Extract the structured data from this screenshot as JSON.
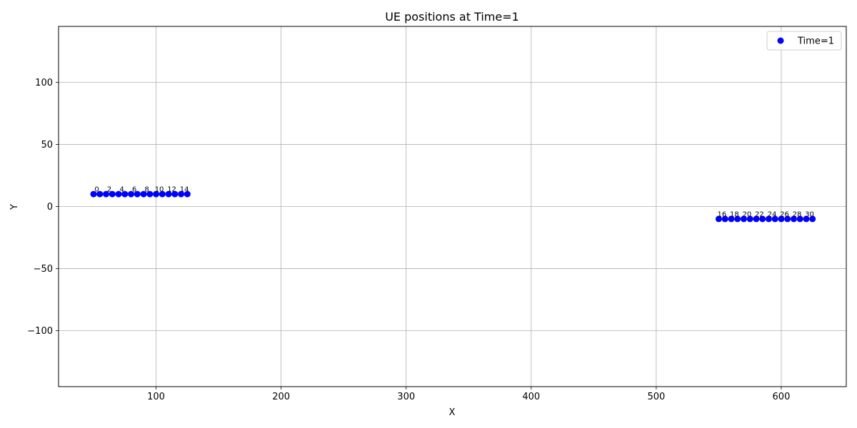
{
  "chart_data": {
    "type": "scatter",
    "title": "UE positions at Time=1",
    "xlabel": "X",
    "ylabel": "Y",
    "xlim": [
      22,
      652
    ],
    "ylim": [
      -145,
      145
    ],
    "xticks": [
      100,
      200,
      300,
      400,
      500,
      600
    ],
    "yticks": [
      -100,
      -50,
      0,
      50,
      100
    ],
    "ytick_labels": [
      "−100",
      "−50",
      "0",
      "50",
      "100"
    ],
    "grid": true,
    "legend_position": "top-right",
    "series": [
      {
        "name": "Time=1",
        "color": "#0000ff",
        "points": [
          {
            "x": 50,
            "y": 10,
            "label": "0"
          },
          {
            "x": 55,
            "y": 10,
            "label": ""
          },
          {
            "x": 60,
            "y": 10,
            "label": "2"
          },
          {
            "x": 65,
            "y": 10,
            "label": ""
          },
          {
            "x": 70,
            "y": 10,
            "label": "4"
          },
          {
            "x": 75,
            "y": 10,
            "label": ""
          },
          {
            "x": 80,
            "y": 10,
            "label": "6"
          },
          {
            "x": 85,
            "y": 10,
            "label": ""
          },
          {
            "x": 90,
            "y": 10,
            "label": "8"
          },
          {
            "x": 95,
            "y": 10,
            "label": ""
          },
          {
            "x": 100,
            "y": 10,
            "label": "10"
          },
          {
            "x": 105,
            "y": 10,
            "label": ""
          },
          {
            "x": 110,
            "y": 10,
            "label": "12"
          },
          {
            "x": 115,
            "y": 10,
            "label": ""
          },
          {
            "x": 120,
            "y": 10,
            "label": "14"
          },
          {
            "x": 125,
            "y": 10,
            "label": ""
          },
          {
            "x": 550,
            "y": -10,
            "label": "16"
          },
          {
            "x": 555,
            "y": -10,
            "label": ""
          },
          {
            "x": 560,
            "y": -10,
            "label": "18"
          },
          {
            "x": 565,
            "y": -10,
            "label": ""
          },
          {
            "x": 570,
            "y": -10,
            "label": "20"
          },
          {
            "x": 575,
            "y": -10,
            "label": ""
          },
          {
            "x": 580,
            "y": -10,
            "label": "22"
          },
          {
            "x": 585,
            "y": -10,
            "label": ""
          },
          {
            "x": 590,
            "y": -10,
            "label": "24"
          },
          {
            "x": 595,
            "y": -10,
            "label": ""
          },
          {
            "x": 600,
            "y": -10,
            "label": "26"
          },
          {
            "x": 605,
            "y": -10,
            "label": ""
          },
          {
            "x": 610,
            "y": -10,
            "label": "28"
          },
          {
            "x": 615,
            "y": -10,
            "label": ""
          },
          {
            "x": 620,
            "y": -10,
            "label": "30"
          },
          {
            "x": 625,
            "y": -10,
            "label": ""
          }
        ]
      }
    ]
  }
}
